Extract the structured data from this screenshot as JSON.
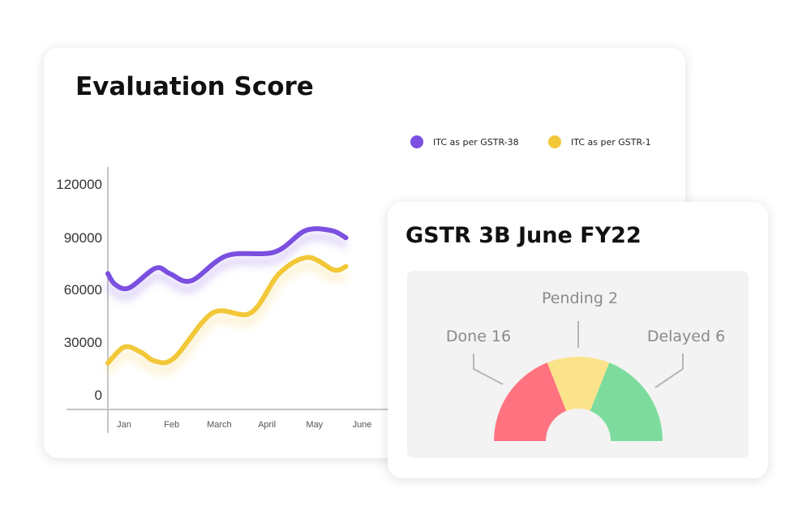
{
  "chart_card": {
    "title": "Evaluation Score"
  },
  "gauge_card": {
    "title": "GSTR 3B June FY22"
  },
  "chart_data": [
    {
      "type": "line",
      "title": "Evaluation Score",
      "x": [
        "Jan",
        "Feb",
        "March",
        "April",
        "May",
        "June"
      ],
      "yticks": [
        "120000",
        "90000",
        "60000",
        "30000",
        "0"
      ],
      "ylim": [
        0,
        120000
      ],
      "grid": false,
      "legend": "top-right",
      "series": [
        {
          "name": "ITC as per GSTR-38",
          "color": "#7b4fe0",
          "points": [
            [
              0.0,
              70000
            ],
            [
              0.15,
              64000
            ],
            [
              0.45,
              62000
            ],
            [
              1.0,
              73000
            ],
            [
              1.3,
              70000
            ],
            [
              1.75,
              66000
            ],
            [
              2.5,
              80000
            ],
            [
              3.5,
              82000
            ],
            [
              4.15,
              94000
            ],
            [
              4.7,
              94000
            ],
            [
              5.0,
              90000
            ]
          ]
        },
        {
          "name": "ITC as per GSTR-1",
          "color": "#f2c738",
          "points": [
            [
              0.0,
              20000
            ],
            [
              0.35,
              29000
            ],
            [
              0.7,
              26000
            ],
            [
              1.0,
              21000
            ],
            [
              1.4,
              23000
            ],
            [
              2.2,
              48000
            ],
            [
              3.0,
              48000
            ],
            [
              3.6,
              70000
            ],
            [
              4.2,
              79000
            ],
            [
              4.75,
              72000
            ],
            [
              5.0,
              74000
            ]
          ]
        }
      ]
    },
    {
      "type": "pie",
      "title": "GSTR 3B June FY22",
      "slices": [
        {
          "label": "Done 16",
          "value": 16,
          "color": "#ff7380"
        },
        {
          "label": "Pending 2",
          "value": 2,
          "color": "#fbe38b"
        },
        {
          "label": "Delayed 6",
          "value": 6,
          "color": "#7ddc9d"
        }
      ]
    }
  ]
}
